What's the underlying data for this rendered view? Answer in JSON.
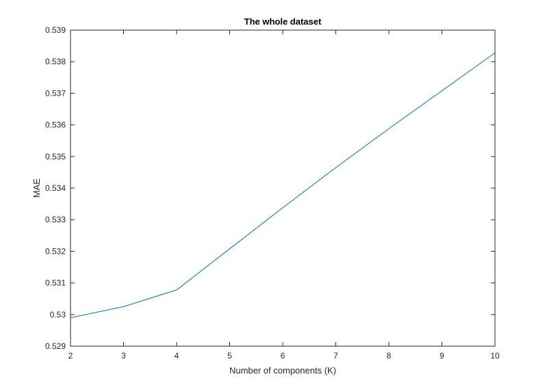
{
  "chart_data": {
    "type": "line",
    "title": "The whole dataset",
    "xlabel": "Number of components (K)",
    "ylabel": "MAE",
    "xlim": [
      2,
      10
    ],
    "ylim": [
      0.529,
      0.539
    ],
    "x_ticks": [
      2,
      3,
      4,
      5,
      6,
      7,
      8,
      9,
      10
    ],
    "x_tick_labels": [
      "2",
      "3",
      "4",
      "5",
      "6",
      "7",
      "8",
      "9",
      "10"
    ],
    "y_ticks": [
      0.529,
      0.53,
      0.531,
      0.532,
      0.533,
      0.534,
      0.535,
      0.536,
      0.537,
      0.538,
      0.539
    ],
    "y_tick_labels": [
      "0.529",
      "0.53",
      "0.531",
      "0.532",
      "0.533",
      "0.534",
      "0.535",
      "0.536",
      "0.537",
      "0.538",
      "0.539"
    ],
    "grid": false,
    "series": [
      {
        "color": "#0072BD",
        "x": [
          2,
          3,
          4,
          5,
          6,
          7,
          8,
          9,
          10
        ],
        "values": [
          0.5299,
          0.53025,
          0.53078,
          0.53208,
          0.53338,
          0.53465,
          0.53588,
          0.53708,
          0.53828
        ]
      }
    ]
  }
}
